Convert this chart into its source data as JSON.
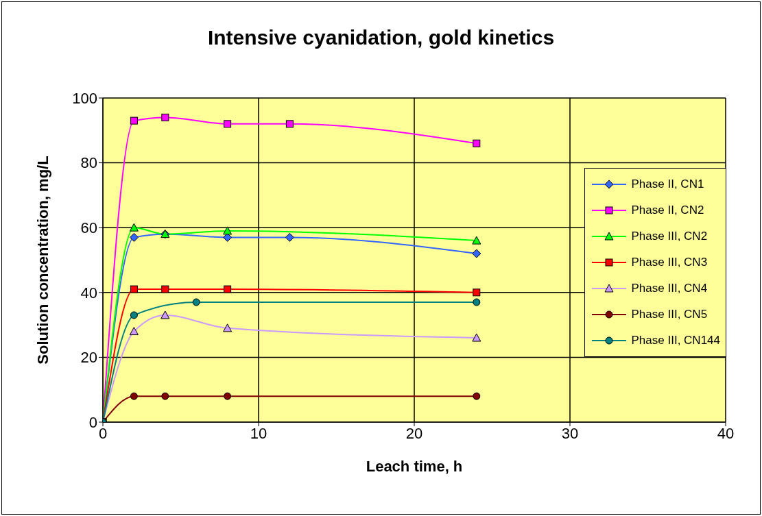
{
  "chart_data": {
    "type": "line",
    "title": "Intensive cyanidation, gold kinetics",
    "xlabel": "Leach time, h",
    "ylabel": "Solution concentration, mg/L",
    "xlim": [
      0,
      40
    ],
    "xticks": [
      0,
      10,
      20,
      30,
      40
    ],
    "ylim": [
      0,
      100
    ],
    "yticks": [
      0,
      20,
      40,
      60,
      80,
      100
    ],
    "grid": true,
    "legend": "right",
    "series": [
      {
        "name": "Phase II, CN1",
        "color": "#3366ff",
        "marker": "diamond",
        "x": [
          0,
          2,
          4,
          8,
          12,
          24
        ],
        "values": [
          0,
          57,
          58,
          57,
          57,
          52
        ]
      },
      {
        "name": "Phase II, CN2",
        "color": "#ff00ff",
        "marker": "square",
        "x": [
          0,
          2,
          4,
          8,
          12,
          24
        ],
        "values": [
          0,
          93,
          94,
          92,
          92,
          86
        ]
      },
      {
        "name": "Phase III, CN2",
        "color": "#00ff00",
        "marker": "triangle",
        "x": [
          0,
          2,
          4,
          8,
          24
        ],
        "values": [
          0,
          60,
          58,
          59,
          56
        ]
      },
      {
        "name": "Phase III, CN3",
        "color": "#ff0000",
        "marker": "square",
        "x": [
          0,
          2,
          4,
          8,
          24
        ],
        "values": [
          0,
          41,
          41,
          41,
          40
        ]
      },
      {
        "name": "Phase III, CN4",
        "color": "#cc99ff",
        "marker": "triangle",
        "x": [
          0,
          2,
          4,
          8,
          24
        ],
        "values": [
          0,
          28,
          33,
          29,
          26
        ]
      },
      {
        "name": "Phase III, CN5",
        "color": "#800000",
        "marker": "circle",
        "x": [
          0,
          2,
          4,
          8,
          24
        ],
        "values": [
          0,
          8,
          8,
          8,
          8
        ]
      },
      {
        "name": "Phase III, CN144",
        "color": "#008080",
        "marker": "circle",
        "x": [
          0,
          2,
          6,
          24
        ],
        "values": [
          0,
          33,
          37,
          37
        ]
      }
    ]
  }
}
